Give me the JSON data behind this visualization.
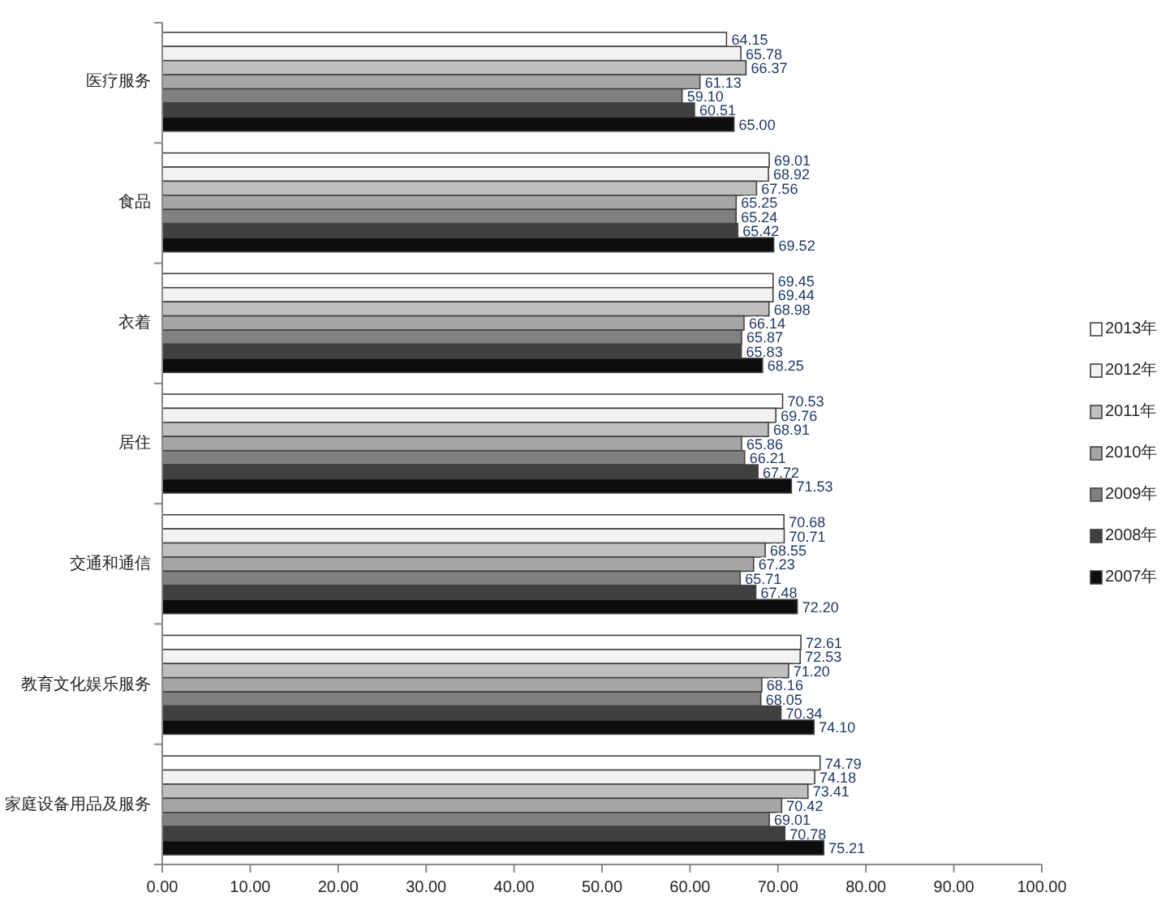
{
  "chart_data": {
    "type": "bar",
    "orientation": "horizontal",
    "categories": [
      "医疗服务",
      "食品",
      "衣着",
      "居住",
      "交通和通信",
      "教育文化娱乐服务",
      "家庭设备用品及服务"
    ],
    "series": [
      {
        "name": "2013年",
        "color": "#ffffff",
        "values": [
          64.15,
          69.01,
          69.45,
          70.53,
          70.68,
          72.61,
          74.79
        ]
      },
      {
        "name": "2012年",
        "color": "#f2f2f2",
        "values": [
          65.78,
          68.92,
          69.44,
          69.76,
          70.71,
          72.53,
          74.18
        ]
      },
      {
        "name": "2011年",
        "color": "#bfbfbf",
        "values": [
          66.37,
          67.56,
          68.98,
          68.91,
          68.55,
          71.2,
          73.41
        ]
      },
      {
        "name": "2010年",
        "color": "#a6a6a6",
        "values": [
          61.13,
          65.25,
          66.14,
          65.86,
          67.23,
          68.16,
          70.42
        ]
      },
      {
        "name": "2009年",
        "color": "#808080",
        "values": [
          59.1,
          65.24,
          65.87,
          66.21,
          65.71,
          68.05,
          69.01
        ]
      },
      {
        "name": "2008年",
        "color": "#404040",
        "values": [
          60.51,
          65.42,
          65.83,
          67.72,
          67.48,
          70.34,
          70.78
        ]
      },
      {
        "name": "2007年",
        "color": "#0d0d0d",
        "values": [
          65.0,
          69.52,
          68.25,
          71.53,
          72.2,
          74.1,
          75.21
        ]
      }
    ],
    "xlim": [
      0,
      100
    ],
    "xticks": [
      {
        "value": 0,
        "label": "0.00"
      },
      {
        "value": 10,
        "label": "10.00"
      },
      {
        "value": 20,
        "label": "20.00"
      },
      {
        "value": 30,
        "label": "30.00"
      },
      {
        "value": 40,
        "label": "40.00"
      },
      {
        "value": 50,
        "label": "50.00"
      },
      {
        "value": 60,
        "label": "60.00"
      },
      {
        "value": 70,
        "label": "70.00"
      },
      {
        "value": 80,
        "label": "80.00"
      },
      {
        "value": 90,
        "label": "90.00"
      },
      {
        "value": 100,
        "label": "100.00"
      }
    ],
    "value_labels": [
      [
        "64.15",
        "69.01",
        "69.45",
        "70.53",
        "70.68",
        "72.61",
        "74.79"
      ],
      [
        "65.78",
        "68.92",
        "69.44",
        "69.76",
        "70.71",
        "72.53",
        "74.18"
      ],
      [
        "66.37",
        "67.56",
        "68.98",
        "68.91",
        "68.55",
        "71.20",
        "73.41"
      ],
      [
        "61.13",
        "65.25",
        "66.14",
        "65.86",
        "67.23",
        "68.16",
        "70.42"
      ],
      [
        "59.10",
        "65.24",
        "65.87",
        "66.21",
        "65.71",
        "68.05",
        "69.01"
      ],
      [
        "60.51",
        "65.42",
        "65.83",
        "67.72",
        "67.48",
        "70.34",
        "70.78"
      ],
      [
        "65.00",
        "69.52",
        "68.25",
        "71.53",
        "72.20",
        "74.10",
        "75.21"
      ]
    ],
    "legend": "right",
    "grid": false
  }
}
